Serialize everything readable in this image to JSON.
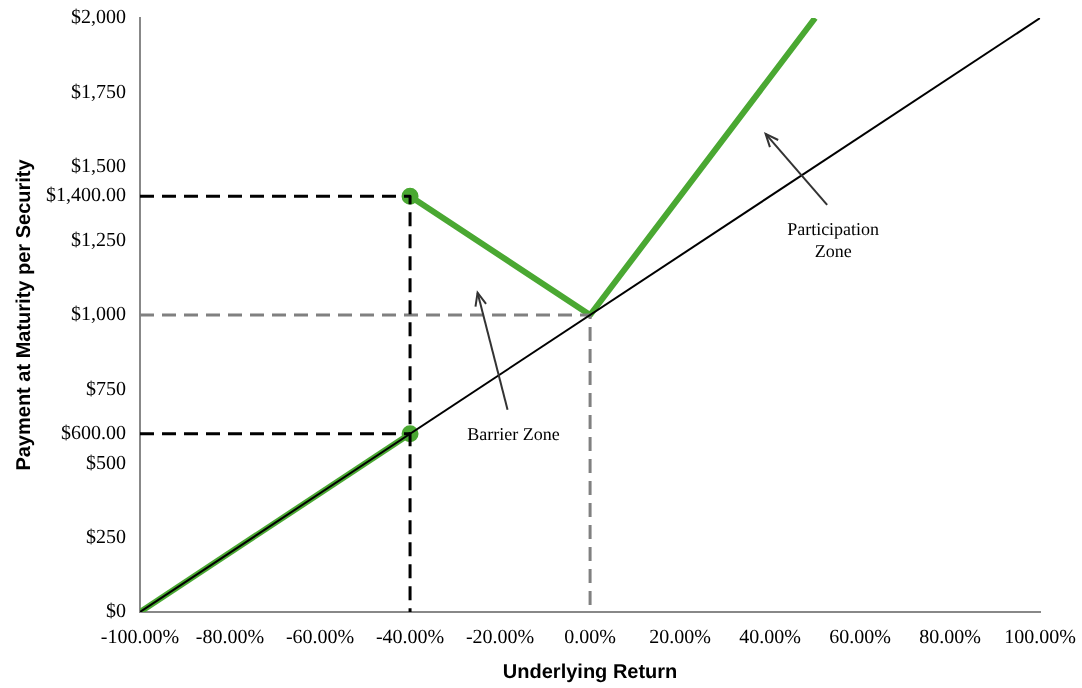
{
  "chart_data": {
    "type": "line",
    "xlabel": "Underlying Return",
    "ylabel": "Payment at Maturity per Security",
    "xlim": [
      -100,
      100
    ],
    "ylim": [
      0,
      2000
    ],
    "xticks": [
      {
        "value": -100,
        "label": "-100.00%"
      },
      {
        "value": -80,
        "label": "-80.00%"
      },
      {
        "value": -60,
        "label": "-60.00%"
      },
      {
        "value": -40,
        "label": "-40.00%"
      },
      {
        "value": -20,
        "label": "-20.00%"
      },
      {
        "value": 0,
        "label": "0.00%"
      },
      {
        "value": 20,
        "label": "20.00%"
      },
      {
        "value": 40,
        "label": "40.00%"
      },
      {
        "value": 60,
        "label": "60.00%"
      },
      {
        "value": 80,
        "label": "80.00%"
      },
      {
        "value": 100,
        "label": "100.00%"
      }
    ],
    "yticks": [
      {
        "value": 0,
        "label": "$0"
      },
      {
        "value": 250,
        "label": "$250"
      },
      {
        "value": 500,
        "label": "$500"
      },
      {
        "value": 600,
        "label": "$600.00"
      },
      {
        "value": 750,
        "label": "$750"
      },
      {
        "value": 1000,
        "label": "$1,000"
      },
      {
        "value": 1250,
        "label": "$1,250"
      },
      {
        "value": 1400,
        "label": "$1,400.00"
      },
      {
        "value": 1500,
        "label": "$1,500"
      },
      {
        "value": 1750,
        "label": "$1,750"
      },
      {
        "value": 2000,
        "label": "$2,000"
      }
    ],
    "grid": false,
    "legend": false,
    "marker": "none",
    "series": [
      {
        "color": "#000000",
        "x": [
          -100,
          100
        ],
        "values": [
          0,
          2000
        ],
        "line_style": "solid"
      },
      {
        "color": "#000000",
        "x": [
          -100,
          -40,
          -40
        ],
        "values": [
          1400,
          1400,
          0
        ],
        "line_style": "dashed"
      },
      {
        "color": "#000000",
        "x": [
          -100,
          -40
        ],
        "values": [
          600,
          600
        ],
        "line_style": "dashed"
      },
      {
        "color": "#808080",
        "x": [
          -100,
          0,
          0
        ],
        "values": [
          1000,
          1000,
          0
        ],
        "line_style": "dashed"
      },
      {
        "color": "#4aa832",
        "x": [
          -100,
          -40
        ],
        "values": [
          0,
          600
        ],
        "line_style": "solid"
      },
      {
        "color": "#4aa832",
        "x": [
          -40,
          0,
          50
        ],
        "values": [
          1400,
          1000,
          2000
        ],
        "line_style": "solid"
      },
      {
        "type": "scatter",
        "color": "#4aa832",
        "x": [
          -40,
          -40
        ],
        "values": [
          600,
          1400
        ],
        "marker": "circle"
      }
    ],
    "annotations": [
      "Barrier Zone",
      "Participation Zone"
    ]
  }
}
